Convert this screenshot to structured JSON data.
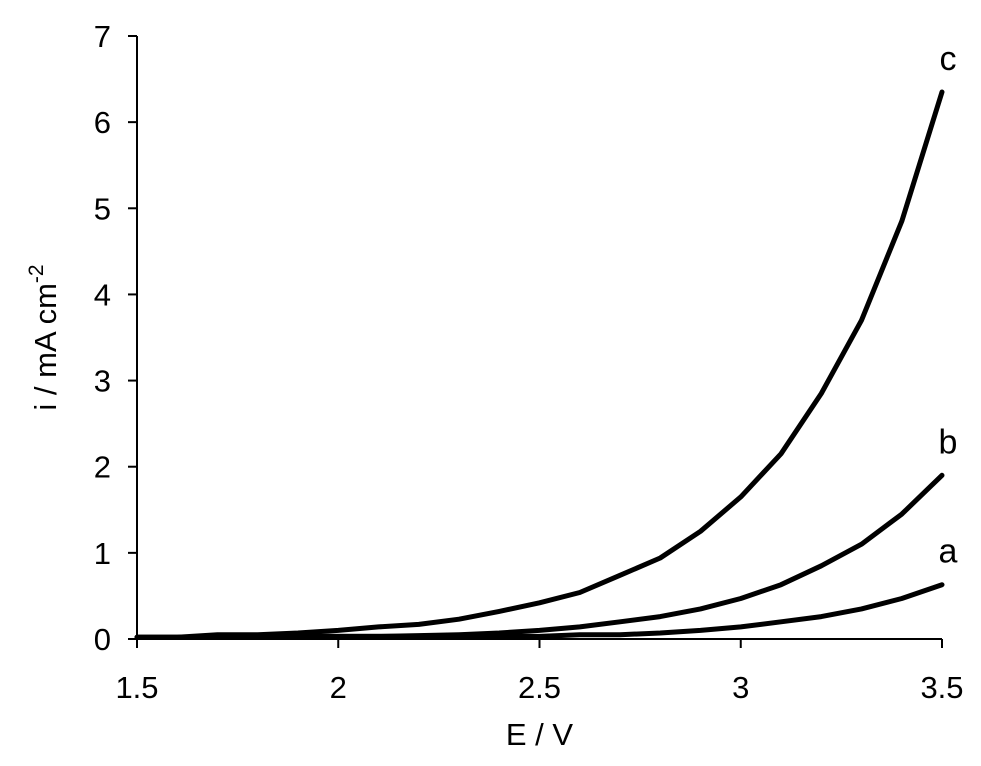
{
  "chart_data": {
    "type": "line",
    "title": "",
    "xlabel": "E / V",
    "ylabel_main": "i / mA cm",
    "ylabel_sup": "-2",
    "xlim": [
      1.5,
      3.5
    ],
    "ylim": [
      0,
      7
    ],
    "xticks": [
      1.5,
      2,
      2.5,
      3,
      3.5
    ],
    "xtick_labels": [
      "1.5",
      "2",
      "2.5",
      "3",
      "3.5"
    ],
    "yticks": [
      0,
      1,
      2,
      3,
      4,
      5,
      6,
      7
    ],
    "ytick_labels": [
      "0",
      "1",
      "2",
      "3",
      "4",
      "5",
      "6",
      "7"
    ],
    "grid": false,
    "legend": "none",
    "line_color": "#000000",
    "x": [
      1.5,
      1.6,
      1.7,
      1.8,
      1.9,
      2.0,
      2.1,
      2.2,
      2.3,
      2.4,
      2.5,
      2.6,
      2.7,
      2.8,
      2.9,
      3.0,
      3.1,
      3.2,
      3.3,
      3.4,
      3.5
    ],
    "series": [
      {
        "name": "a",
        "values": [
          0.02,
          0.02,
          0.03,
          0.03,
          0.03,
          0.03,
          0.03,
          0.03,
          0.03,
          0.03,
          0.03,
          0.05,
          0.05,
          0.07,
          0.1,
          0.14,
          0.2,
          0.26,
          0.35,
          0.47,
          0.63
        ]
      },
      {
        "name": "b",
        "values": [
          0.02,
          0.02,
          0.03,
          0.03,
          0.03,
          0.03,
          0.03,
          0.04,
          0.05,
          0.07,
          0.1,
          0.14,
          0.2,
          0.26,
          0.35,
          0.47,
          0.63,
          0.85,
          1.1,
          1.45,
          1.9
        ]
      },
      {
        "name": "c",
        "values": [
          0.02,
          0.02,
          0.05,
          0.05,
          0.07,
          0.1,
          0.14,
          0.17,
          0.23,
          0.32,
          0.42,
          0.54,
          0.74,
          0.94,
          1.25,
          1.65,
          2.15,
          2.85,
          3.7,
          4.85,
          6.35
        ]
      }
    ]
  }
}
